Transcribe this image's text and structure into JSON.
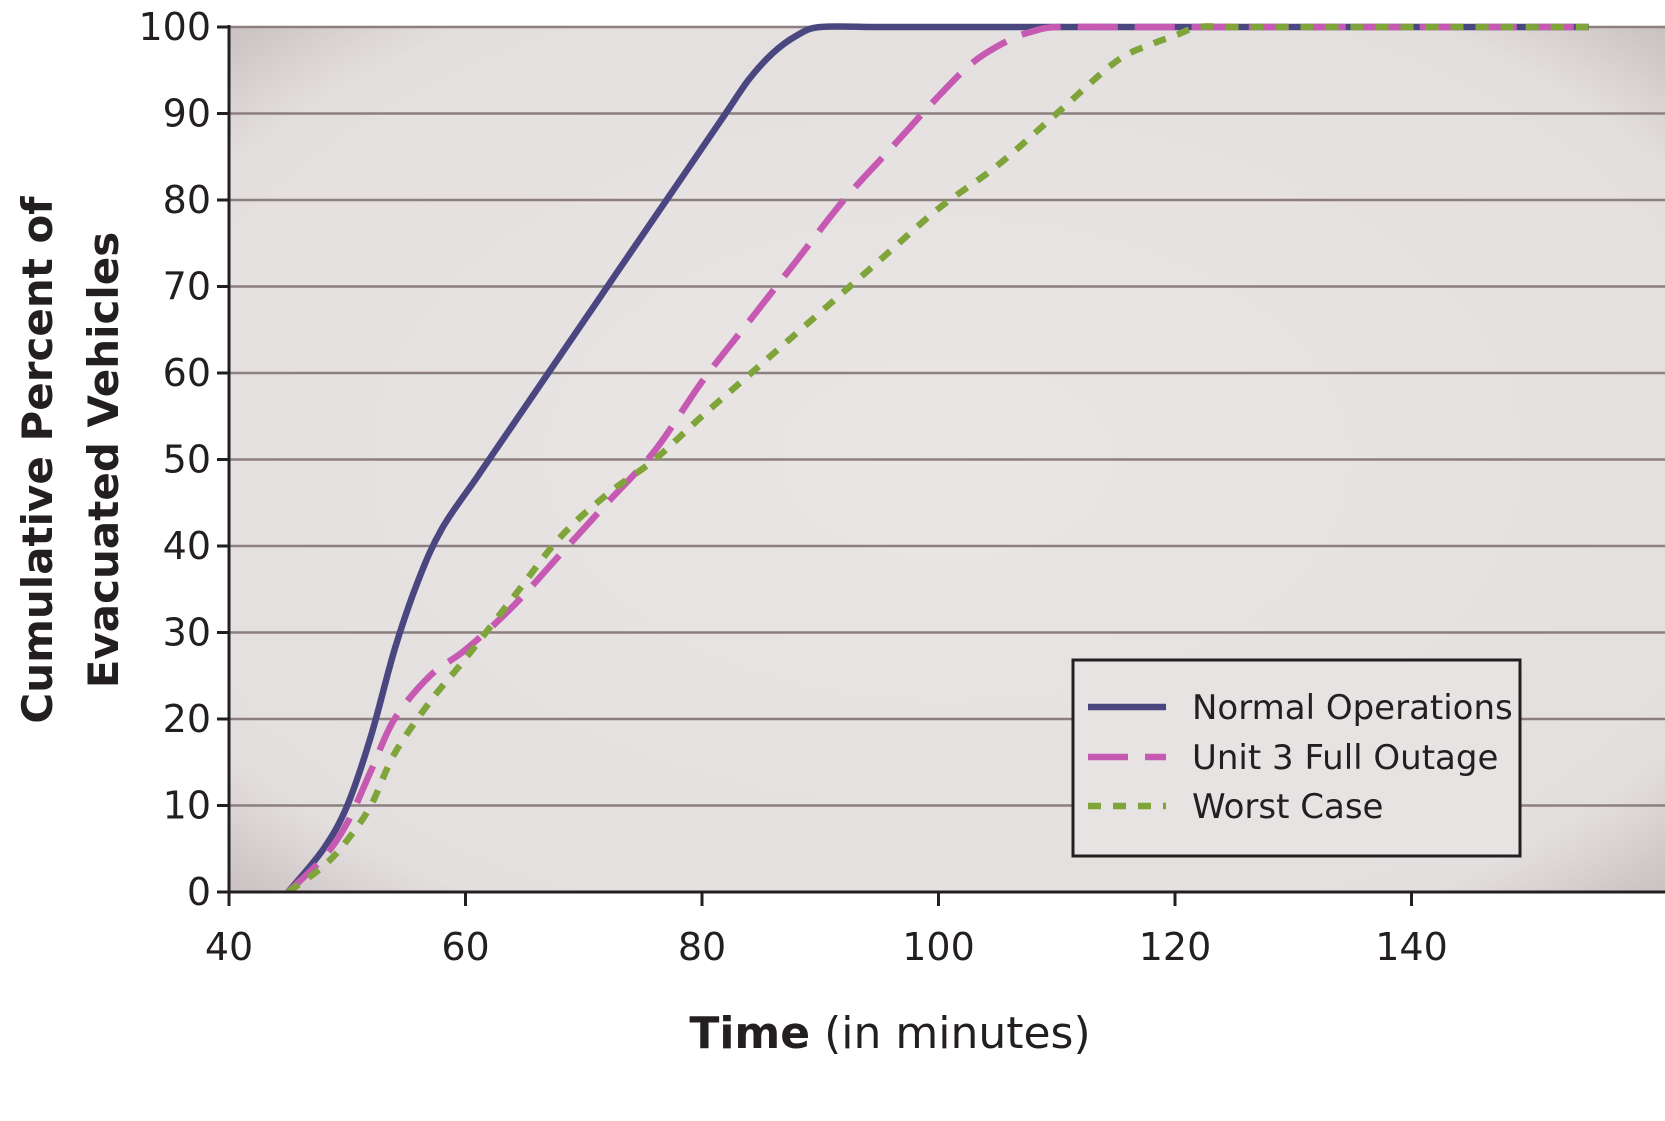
{
  "chart_data": {
    "type": "line",
    "xlabel_bold": "Time",
    "xlabel_rest": " (in minutes)",
    "ylabel_line1": "Cumulative Percent of",
    "ylabel_line2": "Evacuated Vehicles",
    "xlim": [
      40,
      155
    ],
    "ylim": [
      0,
      100
    ],
    "xticks": [
      40,
      60,
      80,
      100,
      120,
      140
    ],
    "yticks": [
      0,
      10,
      20,
      30,
      40,
      50,
      60,
      70,
      80,
      90,
      100
    ],
    "grid": true,
    "legend_position": "bottom-right",
    "series": [
      {
        "name": "Normal Operations",
        "color": "#4a4680",
        "dash": "solid",
        "x": [
          45,
          48,
          50,
          52,
          54,
          56,
          58,
          61,
          64,
          67,
          70,
          73,
          76,
          79,
          82,
          84,
          86,
          88,
          90,
          95,
          100,
          110,
          120,
          130,
          140,
          155
        ],
        "y": [
          0,
          5,
          10,
          18,
          28,
          36,
          42,
          48,
          54,
          60,
          66,
          72,
          78,
          84,
          90,
          94,
          97,
          99,
          100,
          100,
          100,
          100,
          100,
          100,
          100,
          100
        ]
      },
      {
        "name": "Unit 3 Full Outage",
        "color": "#c65ab3",
        "dash": "dash",
        "x": [
          45,
          48,
          50,
          52,
          54,
          57,
          60,
          64,
          68,
          72,
          76,
          80,
          84,
          88,
          92,
          96,
          100,
          103,
          106,
          108,
          110,
          115,
          120,
          130,
          140,
          155
        ],
        "y": [
          0,
          4,
          8,
          14,
          20,
          25,
          28,
          33,
          39,
          45,
          51,
          59,
          66,
          73,
          80,
          86,
          92,
          96,
          98.5,
          99.5,
          100,
          100,
          100,
          100,
          100,
          100
        ]
      },
      {
        "name": "Worst Case",
        "color": "#7fa43a",
        "dash": "dot",
        "x": [
          45,
          48,
          50,
          52,
          54,
          57,
          60,
          64,
          68,
          72,
          76,
          80,
          85,
          90,
          95,
          100,
          105,
          110,
          115,
          118,
          120,
          122,
          125,
          130,
          140,
          155
        ],
        "y": [
          0,
          3,
          6,
          10,
          16,
          22,
          27,
          34,
          41,
          46,
          50,
          55,
          61,
          67,
          73,
          79,
          84,
          90,
          96,
          98,
          99,
          100,
          100,
          100,
          100,
          100
        ]
      }
    ]
  }
}
